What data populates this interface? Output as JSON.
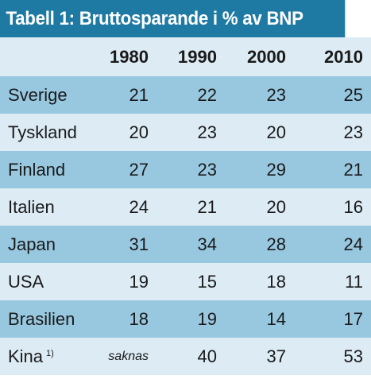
{
  "title": "Tabell 1: Bruttosparande i % av BNP",
  "columns": [
    "",
    "1980",
    "1990",
    "2000",
    "2010"
  ],
  "rows": [
    {
      "country": "Sverige",
      "footnote": "",
      "values": [
        "21",
        "22",
        "23",
        "25"
      ]
    },
    {
      "country": "Tyskland",
      "footnote": "",
      "values": [
        "20",
        "23",
        "20",
        "23"
      ]
    },
    {
      "country": "Finland",
      "footnote": "",
      "values": [
        "27",
        "23",
        "29",
        "21"
      ]
    },
    {
      "country": "Italien",
      "footnote": "",
      "values": [
        "24",
        "21",
        "20",
        "16"
      ]
    },
    {
      "country": "Japan",
      "footnote": "",
      "values": [
        "31",
        "34",
        "28",
        "24"
      ]
    },
    {
      "country": "USA",
      "footnote": "",
      "values": [
        "19",
        "15",
        "18",
        "11"
      ]
    },
    {
      "country": "Brasilien",
      "footnote": "",
      "values": [
        "18",
        "19",
        "14",
        "17"
      ]
    },
    {
      "country": "Kina",
      "footnote": "1)",
      "values": [
        "saknas",
        "40",
        "37",
        "53"
      ]
    }
  ],
  "colors": {
    "title_bg": "#1f7aa3",
    "band_dark": "#98c8e0",
    "band_light": "#dcebf4"
  }
}
